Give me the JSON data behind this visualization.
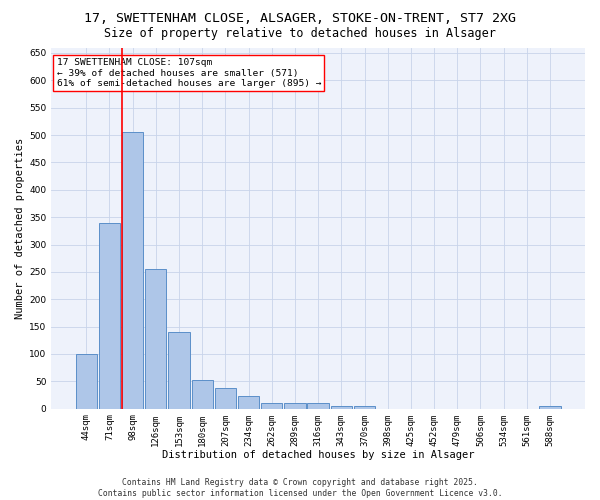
{
  "title1": "17, SWETTENHAM CLOSE, ALSAGER, STOKE-ON-TRENT, ST7 2XG",
  "title2": "Size of property relative to detached houses in Alsager",
  "xlabel": "Distribution of detached houses by size in Alsager",
  "ylabel": "Number of detached properties",
  "bar_labels": [
    "44sqm",
    "71sqm",
    "98sqm",
    "126sqm",
    "153sqm",
    "180sqm",
    "207sqm",
    "234sqm",
    "262sqm",
    "289sqm",
    "316sqm",
    "343sqm",
    "370sqm",
    "398sqm",
    "425sqm",
    "452sqm",
    "479sqm",
    "506sqm",
    "534sqm",
    "561sqm",
    "588sqm"
  ],
  "bar_values": [
    100,
    340,
    505,
    255,
    140,
    53,
    37,
    24,
    10,
    10,
    10,
    5,
    5,
    0,
    0,
    0,
    0,
    0,
    0,
    0,
    5
  ],
  "bar_color": "#aec6e8",
  "bar_edge_color": "#5b8fc9",
  "annotation_line": "17 SWETTENHAM CLOSE: 107sqm",
  "annotation_line2": "← 39% of detached houses are smaller (571)",
  "annotation_line3": "61% of semi-detached houses are larger (895) →",
  "ylim": [
    0,
    660
  ],
  "yticks": [
    0,
    50,
    100,
    150,
    200,
    250,
    300,
    350,
    400,
    450,
    500,
    550,
    600,
    650
  ],
  "bg_color": "#eef2fb",
  "grid_color": "#c8d4ea",
  "footer_text": "Contains HM Land Registry data © Crown copyright and database right 2025.\nContains public sector information licensed under the Open Government Licence v3.0.",
  "title1_fontsize": 9.5,
  "title2_fontsize": 8.5,
  "axis_label_fontsize": 7.5,
  "tick_fontsize": 6.5,
  "footer_fontsize": 5.8,
  "annotation_fontsize": 6.8
}
